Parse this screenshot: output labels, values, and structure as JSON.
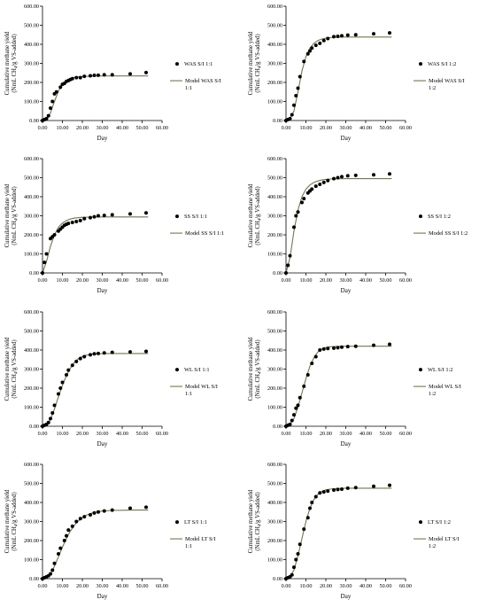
{
  "chart_data": [
    {
      "type": "scatter",
      "xlabel": "Day",
      "ylabel_line1": "Cumulative methane yield",
      "ylabel_line2_pre": "(NmL CH",
      "ylabel_line2_sub": "4",
      "ylabel_line2_post": "/g VS-added)",
      "xlim": [
        0,
        60
      ],
      "ylim": [
        0,
        600
      ],
      "xticks": [
        "0.00",
        "10.00",
        "20.00",
        "30.00",
        "40.00",
        "50.00",
        "60.00"
      ],
      "yticks": [
        "0.00",
        "100.00",
        "200.00",
        "300.00",
        "400.00",
        "500.00",
        "600.00"
      ],
      "legend_position": "right",
      "series": [
        {
          "name": "WAS S/I 1:1",
          "kind": "scatter",
          "x": [
            0,
            1,
            2,
            3,
            4,
            5,
            6,
            7,
            9,
            10,
            11,
            12,
            13,
            14,
            15,
            17,
            19,
            21,
            24,
            26,
            28,
            31,
            35,
            44,
            52
          ],
          "y": [
            0,
            5,
            10,
            25,
            65,
            100,
            140,
            150,
            175,
            190,
            195,
            205,
            210,
            215,
            220,
            225,
            225,
            232,
            235,
            237,
            238,
            240,
            240,
            245,
            252
          ]
        },
        {
          "name": "Model WAS S/I\n1:1",
          "kind": "line",
          "color": "#6b7a4e",
          "x": [
            0,
            2,
            4,
            6,
            8,
            10,
            12,
            14,
            16,
            18,
            20,
            25,
            30,
            35,
            40,
            45,
            50,
            53
          ],
          "y": [
            0,
            8,
            40,
            100,
            155,
            190,
            210,
            220,
            226,
            229,
            231,
            233,
            234,
            234,
            234,
            234,
            234,
            234
          ]
        }
      ]
    },
    {
      "type": "scatter",
      "xlabel": "Day",
      "ylabel_line1": "Cumulative methane yield",
      "ylabel_line2_pre": "(NmL CH",
      "ylabel_line2_sub": "4",
      "ylabel_line2_post": "/g VS-added)",
      "xlim": [
        0,
        60
      ],
      "ylim": [
        0,
        600
      ],
      "xticks": [
        "0.00",
        "10.00",
        "20.00",
        "30.00",
        "40.00",
        "50.00",
        "60.00"
      ],
      "yticks": [
        "0.00",
        "100.00",
        "200.00",
        "300.00",
        "400.00",
        "500.00",
        "600.00"
      ],
      "legend_position": "right",
      "series": [
        {
          "name": "WAS S/I 1:2",
          "kind": "scatter",
          "x": [
            0,
            1,
            2,
            3,
            4,
            5,
            6,
            7,
            9,
            11,
            12,
            13,
            15,
            17,
            19,
            21,
            24,
            26,
            28,
            31,
            35,
            44,
            52
          ],
          "y": [
            0,
            5,
            10,
            30,
            80,
            130,
            170,
            230,
            310,
            350,
            365,
            380,
            395,
            405,
            420,
            430,
            440,
            442,
            445,
            448,
            450,
            455,
            460
          ]
        },
        {
          "name": "Model WAS S/I\n1:2",
          "kind": "line",
          "color": "#6b7a4e",
          "x": [
            0,
            2,
            4,
            6,
            8,
            10,
            12,
            14,
            16,
            18,
            20,
            22,
            25,
            30,
            35,
            40,
            45,
            50,
            53
          ],
          "y": [
            0,
            10,
            50,
            150,
            260,
            335,
            380,
            405,
            420,
            428,
            432,
            435,
            437,
            438,
            438,
            438,
            438,
            438,
            438
          ]
        }
      ]
    },
    {
      "type": "scatter",
      "xlabel": "Day",
      "ylabel_line1": "Cumulative methane yield",
      "ylabel_line2_pre": "(NmL CH",
      "ylabel_line2_sub": "4",
      "ylabel_line2_post": "/g VS-added)",
      "xlim": [
        0,
        60
      ],
      "ylim": [
        0,
        600
      ],
      "xticks": [
        "0.00",
        "10.00",
        "20.00",
        "30.00",
        "40.00",
        "50.00",
        "60.00"
      ],
      "yticks": [
        "0.00",
        "100.00",
        "200.00",
        "300.00",
        "400.00",
        "500.00",
        "600.00"
      ],
      "legend_position": "right",
      "series": [
        {
          "name": "SS S/I 1:1",
          "kind": "scatter",
          "x": [
            0,
            1,
            2,
            4,
            5,
            6,
            8,
            9,
            10,
            11,
            12,
            13,
            15,
            17,
            19,
            21,
            24,
            26,
            28,
            31,
            35,
            44,
            52
          ],
          "y": [
            0,
            55,
            100,
            180,
            190,
            200,
            220,
            230,
            240,
            250,
            255,
            260,
            265,
            270,
            275,
            285,
            290,
            295,
            300,
            302,
            305,
            310,
            315
          ]
        },
        {
          "name": "Model SS S/I 1:1",
          "kind": "line",
          "color": "#6b7a4e",
          "x": [
            0,
            2,
            4,
            6,
            8,
            10,
            12,
            14,
            16,
            18,
            20,
            25,
            30,
            35,
            40,
            45,
            50,
            53
          ],
          "y": [
            0,
            60,
            140,
            200,
            240,
            262,
            275,
            283,
            288,
            290,
            292,
            293,
            294,
            294,
            294,
            294,
            294,
            294
          ]
        }
      ]
    },
    {
      "type": "scatter",
      "xlabel": "Day",
      "ylabel_line1": "Cumulative methane yield",
      "ylabel_line2_pre": "(NmL CH",
      "ylabel_line2_sub": "4",
      "ylabel_line2_post": "/g VS-added)",
      "xlim": [
        0,
        60
      ],
      "ylim": [
        0,
        600
      ],
      "xticks": [
        "0.00",
        "10.00",
        "20.00",
        "30.00",
        "40.00",
        "50.00",
        "60.00"
      ],
      "yticks": [
        "0.00",
        "100.00",
        "200.00",
        "300.00",
        "400.00",
        "500.00",
        "600.00"
      ],
      "legend_position": "right",
      "series": [
        {
          "name": "SS S/I 1:2",
          "kind": "scatter",
          "x": [
            0,
            1,
            2,
            4,
            5,
            6,
            8,
            9,
            11,
            12,
            13,
            15,
            17,
            19,
            21,
            24,
            26,
            28,
            31,
            35,
            44,
            52
          ],
          "y": [
            0,
            40,
            90,
            240,
            300,
            320,
            370,
            390,
            420,
            430,
            440,
            455,
            465,
            475,
            485,
            495,
            500,
            505,
            510,
            512,
            515,
            520
          ]
        },
        {
          "name": "Model SS S/I 1:2",
          "kind": "line",
          "color": "#6b7a4e",
          "x": [
            0,
            2,
            4,
            6,
            8,
            10,
            12,
            14,
            16,
            18,
            20,
            22,
            25,
            30,
            35,
            40,
            45,
            50,
            53
          ],
          "y": [
            0,
            80,
            220,
            330,
            400,
            440,
            462,
            475,
            483,
            488,
            491,
            493,
            494,
            495,
            495,
            495,
            495,
            495,
            495
          ]
        }
      ]
    },
    {
      "type": "scatter",
      "xlabel": "Day",
      "ylabel_line1": "Cumulative methane yield",
      "ylabel_line2_pre": "(NmL CH",
      "ylabel_line2_sub": "4",
      "ylabel_line2_post": "/g VS-added)",
      "xlim": [
        0,
        60
      ],
      "ylim": [
        0,
        600
      ],
      "xticks": [
        "0.00",
        "10.00",
        "20.00",
        "30.00",
        "40.00",
        "50.00",
        "60.00"
      ],
      "yticks": [
        "0.00",
        "100.00",
        "200.00",
        "300.00",
        "400.00",
        "500.00",
        "600.00"
      ],
      "legend_position": "right",
      "series": [
        {
          "name": "WL S/I 1:1",
          "kind": "scatter",
          "x": [
            0,
            1,
            2,
            3,
            4,
            5,
            6,
            8,
            9,
            10,
            12,
            13,
            15,
            17,
            19,
            21,
            24,
            26,
            28,
            31,
            35,
            44,
            52
          ],
          "y": [
            0,
            5,
            10,
            20,
            40,
            70,
            110,
            170,
            200,
            230,
            270,
            295,
            320,
            340,
            355,
            365,
            375,
            380,
            382,
            385,
            388,
            390,
            393
          ]
        },
        {
          "name": "Model WL S/I\n1:1",
          "kind": "line",
          "color": "#6b7a4e",
          "x": [
            0,
            2,
            4,
            6,
            8,
            10,
            12,
            14,
            16,
            18,
            20,
            22,
            25,
            30,
            35,
            40,
            45,
            50,
            53
          ],
          "y": [
            0,
            8,
            35,
            90,
            155,
            215,
            265,
            305,
            335,
            355,
            366,
            373,
            378,
            381,
            382,
            382,
            382,
            382,
            382
          ]
        }
      ]
    },
    {
      "type": "scatter",
      "xlabel": "Day",
      "ylabel_line1": "Cumulative methane yield",
      "ylabel_line2_pre": "(NmL CH",
      "ylabel_line2_sub": "4",
      "ylabel_line2_post": "/g VS-added)",
      "xlim": [
        0,
        60
      ],
      "ylim": [
        0,
        600
      ],
      "xticks": [
        "0.00",
        "10.00",
        "20.00",
        "30.00",
        "40.00",
        "50.00",
        "60.00"
      ],
      "yticks": [
        "0.00",
        "100.00",
        "200.00",
        "300.00",
        "400.00",
        "500.00",
        "600.00"
      ],
      "legend_position": "right",
      "series": [
        {
          "name": "WL S/I 1:2",
          "kind": "scatter",
          "x": [
            0,
            1,
            2,
            3,
            4,
            5,
            6,
            7,
            9,
            11,
            13,
            15,
            17,
            19,
            21,
            24,
            26,
            28,
            31,
            35,
            44,
            52
          ],
          "y": [
            0,
            5,
            10,
            30,
            60,
            95,
            110,
            150,
            210,
            270,
            330,
            365,
            400,
            405,
            408,
            410,
            412,
            415,
            418,
            420,
            425,
            430
          ]
        },
        {
          "name": "Model WL S/I\n1:2",
          "kind": "line",
          "color": "#6b7a4e",
          "x": [
            0,
            2,
            4,
            6,
            8,
            10,
            12,
            14,
            16,
            18,
            20,
            22,
            25,
            30,
            35,
            40,
            45,
            50,
            53
          ],
          "y": [
            0,
            10,
            40,
            100,
            175,
            250,
            315,
            360,
            390,
            405,
            413,
            417,
            419,
            420,
            420,
            420,
            420,
            420,
            420
          ]
        }
      ]
    },
    {
      "type": "scatter",
      "xlabel": "Day",
      "ylabel_line1": "Cumulative methane yield",
      "ylabel_line2_pre": "(NmL CH",
      "ylabel_line2_sub": "4",
      "ylabel_line2_post": "/g VS-added)",
      "xlim": [
        0,
        60
      ],
      "ylim": [
        0,
        600
      ],
      "xticks": [
        "0.00",
        "10.00",
        "20.00",
        "30.00",
        "40.00",
        "50.00",
        "60.00"
      ],
      "yticks": [
        "0.00",
        "100.00",
        "200.00",
        "300.00",
        "400.00",
        "500.00",
        "600.00"
      ],
      "legend_position": "right",
      "series": [
        {
          "name": "LT S/I 1:1",
          "kind": "scatter",
          "x": [
            0,
            1,
            2,
            3,
            4,
            5,
            6,
            8,
            9,
            11,
            12,
            13,
            15,
            17,
            19,
            21,
            24,
            26,
            28,
            31,
            35,
            44,
            52
          ],
          "y": [
            0,
            5,
            10,
            15,
            25,
            45,
            80,
            130,
            160,
            200,
            225,
            255,
            275,
            300,
            315,
            325,
            335,
            345,
            350,
            355,
            360,
            370,
            375
          ]
        },
        {
          "name": "Model LT S/I\n1:1",
          "kind": "line",
          "color": "#6b7a4e",
          "x": [
            0,
            2,
            4,
            6,
            8,
            10,
            12,
            14,
            16,
            18,
            20,
            22,
            25,
            28,
            30,
            35,
            40,
            45,
            50,
            53
          ],
          "y": [
            0,
            6,
            25,
            65,
            115,
            165,
            210,
            250,
            280,
            303,
            320,
            333,
            345,
            352,
            355,
            358,
            359,
            360,
            360,
            360
          ]
        }
      ]
    },
    {
      "type": "scatter",
      "xlabel": "Day",
      "ylabel_line1": "Cumulative methane yield",
      "ylabel_line2_pre": "(NmL CH",
      "ylabel_line2_sub": "4",
      "ylabel_line2_post": "/g VS-added)",
      "xlim": [
        0,
        60
      ],
      "ylim": [
        0,
        600
      ],
      "xticks": [
        "0.00",
        "10.00",
        "20.00",
        "30.00",
        "40.00",
        "50.00",
        "60.00"
      ],
      "yticks": [
        "0.00",
        "100.00",
        "200.00",
        "300.00",
        "400.00",
        "500.00",
        "600.00"
      ],
      "legend_position": "right",
      "series": [
        {
          "name": "LT S/I 1:2",
          "kind": "scatter",
          "x": [
            0,
            1,
            2,
            3,
            4,
            5,
            6,
            7,
            9,
            11,
            12,
            13,
            15,
            17,
            19,
            21,
            24,
            26,
            28,
            31,
            35,
            44,
            52
          ],
          "y": [
            0,
            5,
            10,
            20,
            60,
            100,
            130,
            180,
            260,
            320,
            370,
            400,
            430,
            450,
            455,
            460,
            465,
            468,
            470,
            475,
            478,
            485,
            490
          ]
        },
        {
          "name": "Model LT S/I\n1:2",
          "kind": "line",
          "color": "#6b7a4e",
          "x": [
            0,
            2,
            4,
            6,
            8,
            10,
            12,
            14,
            16,
            18,
            20,
            22,
            25,
            30,
            35,
            40,
            45,
            50,
            53
          ],
          "y": [
            0,
            10,
            45,
            120,
            210,
            300,
            370,
            415,
            443,
            458,
            466,
            470,
            473,
            475,
            475,
            475,
            475,
            475,
            475
          ]
        }
      ]
    }
  ]
}
